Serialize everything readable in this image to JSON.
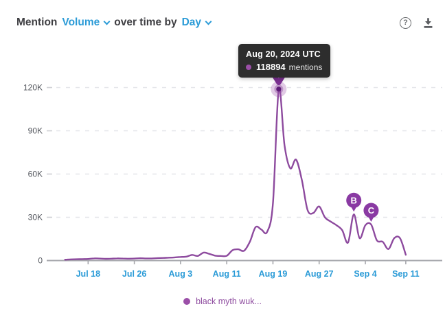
{
  "header": {
    "title_prefix": "Mention",
    "metric": "Volume",
    "connector": "over time by",
    "interval": "Day",
    "help_label": "?"
  },
  "tooltip": {
    "date": "Aug 20, 2024 UTC",
    "value": "118894",
    "unit": "mentions"
  },
  "legend": {
    "label": "black myth wuk...",
    "dot_color": "#9b4fa8"
  },
  "colors": {
    "accent_blue": "#2b9bd7",
    "series_purple": "#8d4a9e",
    "marker_purple": "#8a3aa3",
    "tooltip_bg": "#2d2d2d"
  },
  "chart_data": {
    "type": "line",
    "title": "Mention Volume over time by Day",
    "ylabel": "mentions",
    "ylim": [
      0,
      120000
    ],
    "grid": "horizontal-dashed",
    "legend_position": "bottom-center",
    "y_ticks": [
      {
        "value": 0,
        "label": "0"
      },
      {
        "value": 30000,
        "label": "30K"
      },
      {
        "value": 60000,
        "label": "60K"
      },
      {
        "value": 90000,
        "label": "90K"
      },
      {
        "value": 120000,
        "label": "120K"
      }
    ],
    "x_tick_labels": [
      "Jul 18",
      "Jul 26",
      "Aug 3",
      "Aug 11",
      "Aug 19",
      "Aug 27",
      "Sep 4",
      "Sep 11"
    ],
    "x_tick_day_indices": [
      4,
      12,
      20,
      28,
      36,
      44,
      52,
      59
    ],
    "series": [
      {
        "name": "black myth wuk...",
        "color": "#8d4a9e",
        "dates": [
          "Jul 14",
          "Jul 15",
          "Jul 16",
          "Jul 17",
          "Jul 18",
          "Jul 19",
          "Jul 20",
          "Jul 21",
          "Jul 22",
          "Jul 23",
          "Jul 24",
          "Jul 25",
          "Jul 26",
          "Jul 27",
          "Jul 28",
          "Jul 29",
          "Jul 30",
          "Jul 31",
          "Aug 1",
          "Aug 2",
          "Aug 3",
          "Aug 4",
          "Aug 5",
          "Aug 6",
          "Aug 7",
          "Aug 8",
          "Aug 9",
          "Aug 10",
          "Aug 11",
          "Aug 12",
          "Aug 13",
          "Aug 14",
          "Aug 15",
          "Aug 16",
          "Aug 17",
          "Aug 18",
          "Aug 19",
          "Aug 20",
          "Aug 21",
          "Aug 22",
          "Aug 23",
          "Aug 24",
          "Aug 25",
          "Aug 26",
          "Aug 27",
          "Aug 28",
          "Aug 29",
          "Aug 30",
          "Aug 31",
          "Sep 1",
          "Sep 2",
          "Sep 3",
          "Sep 4",
          "Sep 5",
          "Sep 6",
          "Sep 7",
          "Sep 8",
          "Sep 9",
          "Sep 10",
          "Sep 11"
        ],
        "values": [
          600,
          800,
          900,
          1000,
          1100,
          1500,
          1400,
          1200,
          1300,
          1500,
          1400,
          1300,
          1400,
          1600,
          1500,
          1500,
          1700,
          1800,
          2000,
          2200,
          2500,
          2700,
          3900,
          3200,
          5500,
          4600,
          3400,
          3200,
          3300,
          7200,
          7800,
          6800,
          13000,
          23200,
          21500,
          20000,
          40000,
          118894,
          80000,
          64000,
          70000,
          56000,
          35000,
          33000,
          37500,
          30000,
          27000,
          24500,
          21000,
          12500,
          32000,
          15500,
          24500,
          25000,
          14000,
          13000,
          8000,
          15500,
          15500,
          4000
        ]
      }
    ],
    "highlight": {
      "day_index": 37,
      "date": "Aug 20, 2024 UTC",
      "value": 118894
    },
    "annotations": [
      {
        "letter": "B",
        "day_index": 50,
        "date": "Sep 2"
      },
      {
        "letter": "C",
        "day_index": 53,
        "date": "Sep 5"
      }
    ]
  }
}
